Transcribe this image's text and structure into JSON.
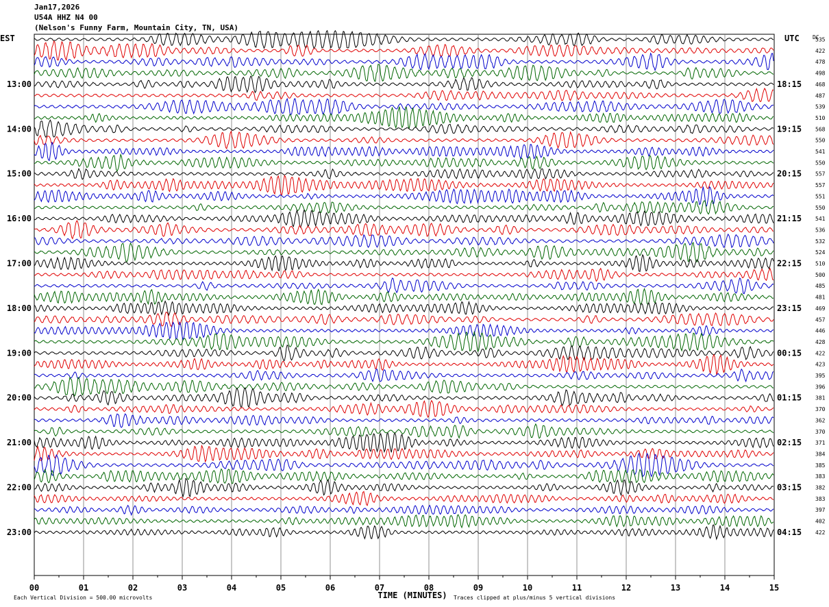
{
  "header": {
    "date": "Jan17,2026",
    "station": "U54A HHZ N4 00",
    "location": "(Nelson's Funny Farm, Mountain City, TN, USA)"
  },
  "chart_data": {
    "type": "line",
    "title": "",
    "left_axis_label": "EST",
    "right_axis_label": "UTC",
    "dc_label": "DC",
    "xlabel": "TIME (MINUTES)",
    "xlim": [
      0,
      15
    ],
    "x_ticks": [
      "00",
      "01",
      "02",
      "03",
      "04",
      "05",
      "06",
      "07",
      "08",
      "09",
      "10",
      "11",
      "12",
      "13",
      "14",
      "15"
    ],
    "hour_labels_left": [
      "13:00",
      "14:00",
      "15:00",
      "16:00",
      "17:00",
      "18:00",
      "19:00",
      "20:00",
      "21:00",
      "22:00",
      "23:00"
    ],
    "hour_labels_right": [
      "18:15",
      "19:15",
      "20:15",
      "21:15",
      "22:15",
      "23:15",
      "00:15",
      "01:15",
      "02:15",
      "03:15",
      "04:15"
    ],
    "trace_colors": [
      "#000000",
      "#e00000",
      "#0000cc",
      "#006600"
    ],
    "dc_offsets": [
      535,
      422,
      478,
      498,
      468,
      487,
      539,
      510,
      568,
      550,
      541,
      550,
      557,
      557,
      551,
      550,
      541,
      536,
      532,
      524,
      510,
      500,
      485,
      481,
      469,
      457,
      446,
      428,
      422,
      423,
      395,
      396,
      381,
      370,
      362,
      370,
      371,
      384,
      385,
      383,
      382,
      383,
      397,
      402,
      422
    ],
    "footer": {
      "vertical_division": "Each Vertical Division =  500.00 microvolts",
      "clipping": "Traces clipped at plus/minus 5 vertical divisions"
    }
  }
}
